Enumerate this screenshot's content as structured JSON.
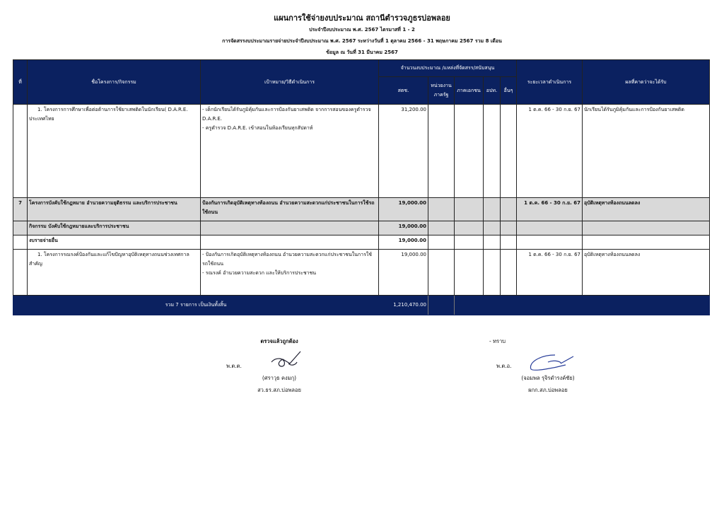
{
  "title": "แผนการใช้จ่ายงบประมาณ สถานีตำรวจภูธรบ่อพลอย",
  "subtitle1": "ประจำปีงบประมาณ พ.ศ. 2567 ไตรมาสที่ 1 - 2",
  "subtitle2": "การจัดสรรงบประมาณรายจ่ายประจำปีงบประมาณ พ.ศ. 2567  ระหว่างวันที่ 1 ตุลาคม 2566 - 31 พฤษภาคม 2567 รวม 8 เดือน",
  "subtitle3": "ข้อมูล ณ วันที่ 31 มีนาคม 2567",
  "header": {
    "no": "ที่",
    "name": "ชื่อโครงการ/กิจกรรม",
    "goal": "เป้าหมาย/วิธีดำเนินการ",
    "budget_group": "จำนวนงบประมาณ /แหล่งที่จัดสรร/สนับสนุน",
    "police": "สตช.",
    "gov": "หน่วยงานภาครัฐ",
    "private": "ภาคเอกชน",
    "local": "อปท.",
    "other": "อื่นๆ",
    "period": "ระยะเวลาดำเนินการ",
    "result": "ผลที่คาดว่าจะได้รับ"
  },
  "rows": [
    {
      "no": "",
      "name": "1. โครงการการศึกษาเพื่อต่อต้านการใช้ยาเสพติดในนักเรียน( D.A.R.E. ประเทศไทย",
      "goal1": "- เด็กนักเรียนได้รับภูมิคุ้มกันและการป้องกันยาเสพติด จากการสอนของครูตำรวจ D.A.R.E.",
      "goal2": "- ครูตำรวจ D.A.R.E. เข้าสอนในห้องเรียนทุกสัปดาห์",
      "police": "31,200.00",
      "period": "1 ต.ค. 66 - 30 ก.ย. 67",
      "result": "นักเรียนได้รับภูมิคุ้มกันและการป้องกันยาเสพติด"
    },
    {
      "no": "7",
      "name": "โครงการบังคับใช้กฎหมาย อำนวยความยุติธรรม และบริการประชาชน",
      "goal1": "ป้องกันการเกิดอุบัติเหตุทางท้องถนน อำนวยความสะดวกแก่ประชาชนในการใช้รถใช้ถนน",
      "police": "19,000.00",
      "period": "1 ต.ค. 66 - 30 ก.ย. 67",
      "result": "อุบัติเหตุทางท้องถนนลดลง"
    },
    {
      "name": "กิจกรรม บังคับใช้กฎหมายและบริการประชาชน",
      "police": "19,000.00"
    },
    {
      "name": "งบรายจ่ายอื่น",
      "police": "19,000.00"
    },
    {
      "no": "",
      "name": "1. โครงการรณรงค์ป้องกันและแก้ไขปัญหาอุบัติเหตุทางถนนช่วงเทศกาลสำคัญ",
      "goal1": "- ป้องกันการเกิดอุบัติเหตุทางท้องถนน อำนวยความสะดวกแก่ประชาชนในการใช้รถใช้ถนน",
      "goal2": "- รณรงค์ อำนวยความสะดวก และให้บริการประชาชน",
      "police": "19,000.00",
      "period": "1 ต.ค. 66 - 30 ก.ย. 67",
      "result": "อุบัติเหตุทางท้องถนนลดลง"
    }
  ],
  "total": {
    "label": "รวม  7  รายการ  เป็นเงินทั้งสิ้น",
    "police": "1,210,470.00"
  },
  "signatures": {
    "left": {
      "heading": "ตรวจแล้วถูกต้อง",
      "rank": "พ.ต.ต.",
      "name": "(ศราวุธ คงมกุ)",
      "position": "สว.ธร.สภ.บ่อพลอย"
    },
    "right": {
      "heading": "- ทราบ",
      "rank": "พ.ต.อ.",
      "name": "(จอมพล รุจิรดำรงค์ชัย)",
      "position": "ผกก.สภ.บ่อพลอย"
    }
  }
}
